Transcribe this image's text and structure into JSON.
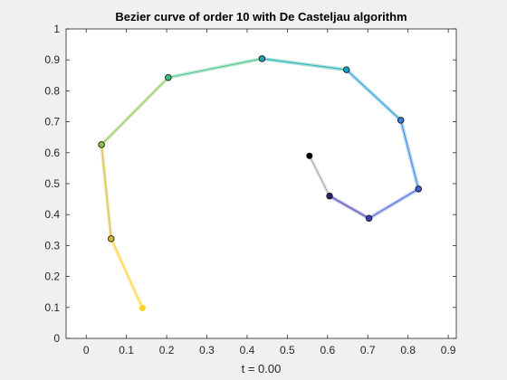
{
  "chart_data": {
    "type": "line",
    "title": "Bezier curve of order 10 with De Casteljau algorithm",
    "xlabel": "t = 0.00",
    "ylabel": "",
    "xlim": [
      -0.05,
      0.92
    ],
    "ylim": [
      0,
      1
    ],
    "xticks": [
      "0",
      "0.1",
      "0.2",
      "0.3",
      "0.4",
      "0.5",
      "0.6",
      "0.7",
      "0.8",
      "0.9"
    ],
    "yticks": [
      "0",
      "0.1",
      "0.2",
      "0.3",
      "0.4",
      "0.5",
      "0.6",
      "0.7",
      "0.8",
      "0.9",
      "1"
    ],
    "grid": false,
    "series": [
      {
        "kind": "control-polygon",
        "points": [
          {
            "x": 0.555,
            "y": 0.59,
            "color": "#000000"
          },
          {
            "x": 0.605,
            "y": 0.46,
            "color": "#2a1e7a"
          },
          {
            "x": 0.703,
            "y": 0.388,
            "color": "#3d3db0"
          },
          {
            "x": 0.826,
            "y": 0.483,
            "color": "#3e5fd6"
          },
          {
            "x": 0.782,
            "y": 0.705,
            "color": "#2f7fe0"
          },
          {
            "x": 0.647,
            "y": 0.868,
            "color": "#1f96d0"
          },
          {
            "x": 0.437,
            "y": 0.904,
            "color": "#17aaa8"
          },
          {
            "x": 0.204,
            "y": 0.843,
            "color": "#3ebd82"
          },
          {
            "x": 0.038,
            "y": 0.626,
            "color": "#8ac24a"
          },
          {
            "x": 0.062,
            "y": 0.322,
            "color": "#d1b935"
          },
          {
            "x": 0.14,
            "y": 0.098,
            "color": "#f9d224"
          }
        ]
      }
    ]
  }
}
